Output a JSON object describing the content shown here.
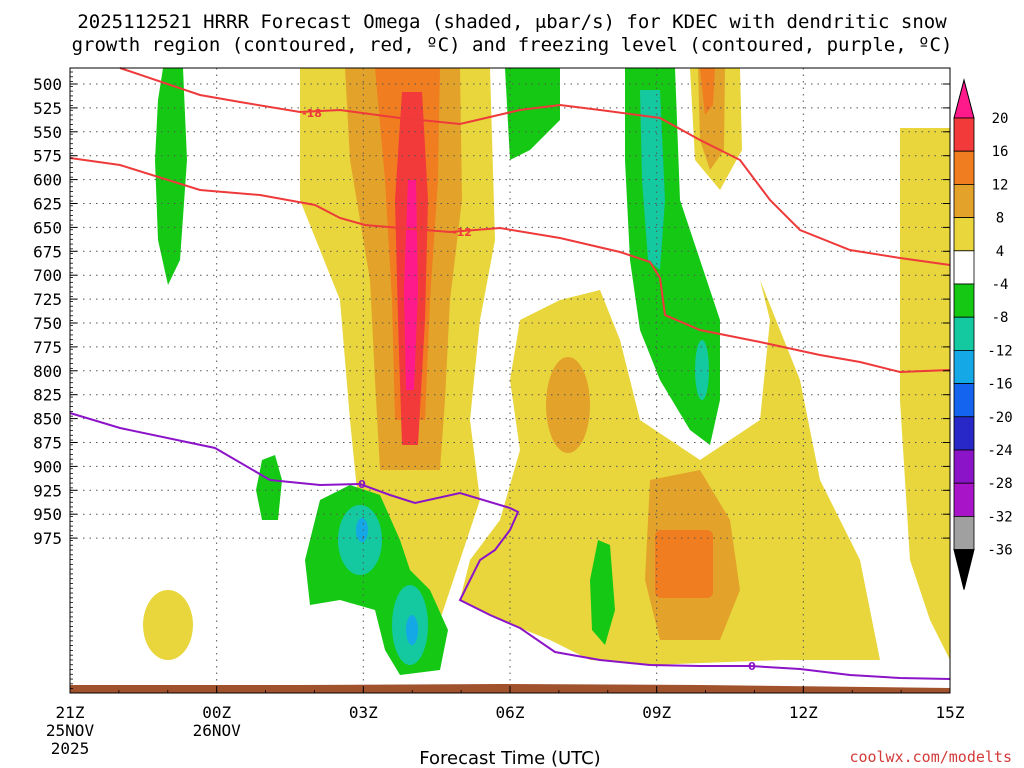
{
  "chart_data": {
    "type": "time-height cross section",
    "title_line1": "2025112521 HRRR Forecast Omega (shaded, μbar/s) for KDEC with dendritic snow",
    "title_line2": "growth region (contoured, red, ºC) and freezing level (contoured, purple, ºC)",
    "xlabel": "Forecast Time (UTC)",
    "credit": "coolwx.com/modelts",
    "y_ticks": [
      "500",
      "525",
      "550",
      "575",
      "600",
      "625",
      "650",
      "675",
      "700",
      "725",
      "750",
      "775",
      "800",
      "825",
      "850",
      "875",
      "900",
      "925",
      "950",
      "975"
    ],
    "x_ticks": [
      {
        "label": "21Z",
        "sub1": "25NOV",
        "sub2": "2025",
        "hour": 0
      },
      {
        "label": "00Z",
        "sub1": "26NOV",
        "sub2": "",
        "hour": 3
      },
      {
        "label": "03Z",
        "sub1": "",
        "sub2": "",
        "hour": 6
      },
      {
        "label": "06Z",
        "sub1": "",
        "sub2": "",
        "hour": 9
      },
      {
        "label": "09Z",
        "sub1": "",
        "sub2": "",
        "hour": 12
      },
      {
        "label": "12Z",
        "sub1": "",
        "sub2": "",
        "hour": 15
      },
      {
        "label": "15Z",
        "sub1": "",
        "sub2": "",
        "hour": 18
      }
    ],
    "colorbar_labels": [
      "20",
      "16",
      "12",
      "8",
      "4",
      "-4",
      "-8",
      "-12",
      "-16",
      "-20",
      "-24",
      "-28",
      "-32",
      "-36"
    ],
    "colorbar_colors": [
      "#ff1a8c",
      "#f23a3a",
      "#f07d20",
      "#e3a32a",
      "#e8d63c",
      "#ffffff",
      "#14c814",
      "#14c8a0",
      "#14a8e6",
      "#1464f0",
      "#2828c8",
      "#8c14c8",
      "#a814c8",
      "#a0a0a0",
      "#000000"
    ],
    "contour_labels": {
      "red_18": "-18",
      "red_12": "-12",
      "purple_0a": "0",
      "purple_0b": "0"
    },
    "colors": {
      "red_contour": "#ee3a3a",
      "purple_contour": "#8c14c8",
      "ground": "#a0522d"
    }
  }
}
